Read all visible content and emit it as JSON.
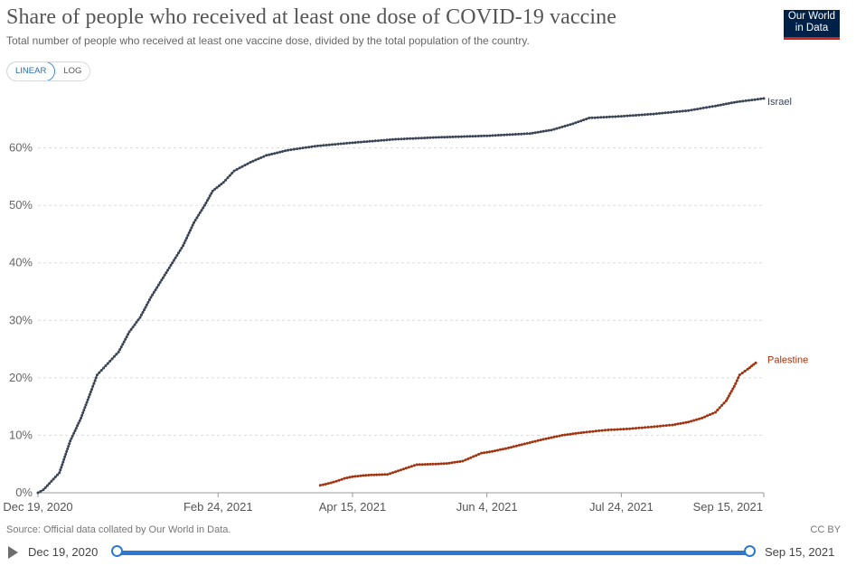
{
  "header": {
    "title": "Share of people who received at least one dose of COVID-19 vaccine",
    "subtitle": "Total number of people who received at least one vaccine dose, divided by the total population of the country.",
    "logo_line1": "Our World",
    "logo_line2": "in Data"
  },
  "scale_toggle": {
    "linear": "LINEAR",
    "log": "LOG",
    "selected": "LINEAR"
  },
  "footer": {
    "source": "Source: Official data collated by Our World in Data.",
    "license": "CC BY"
  },
  "timeline": {
    "start": "Dec 19, 2020",
    "end": "Sep 15, 2021"
  },
  "colors": {
    "israel": "#3a4556",
    "palestine": "#a2330f",
    "brand": "#002147",
    "accent": "#2c79cf"
  },
  "chart_data": {
    "type": "line",
    "title": "Share of people who received at least one dose of COVID-19 vaccine",
    "x_type": "date",
    "xlim": [
      "2020-12-19",
      "2021-09-15"
    ],
    "ylim": [
      0,
      70
    ],
    "y_unit": "%",
    "grid": true,
    "x_ticks": [
      {
        "label": "Dec 19, 2020",
        "date": "2020-12-19"
      },
      {
        "label": "Feb 24, 2021",
        "date": "2021-02-24"
      },
      {
        "label": "Apr 15, 2021",
        "date": "2021-04-15"
      },
      {
        "label": "Jun 4, 2021",
        "date": "2021-06-04"
      },
      {
        "label": "Jul 24, 2021",
        "date": "2021-07-24"
      },
      {
        "label": "Sep 15, 2021",
        "date": "2021-09-15"
      }
    ],
    "y_ticks": [
      {
        "label": "0%",
        "value": 0
      },
      {
        "label": "10%",
        "value": 10
      },
      {
        "label": "20%",
        "value": 20
      },
      {
        "label": "30%",
        "value": 30
      },
      {
        "label": "40%",
        "value": 40
      },
      {
        "label": "50%",
        "value": 50
      },
      {
        "label": "60%",
        "value": 60
      }
    ],
    "series": [
      {
        "name": "Israel",
        "color": "#3a4556",
        "points": [
          [
            "2020-12-19",
            0.0
          ],
          [
            "2020-12-21",
            0.5
          ],
          [
            "2020-12-24",
            2.0
          ],
          [
            "2020-12-27",
            3.5
          ],
          [
            "2020-12-31",
            9.0
          ],
          [
            "2021-01-04",
            13.0
          ],
          [
            "2021-01-08",
            18.0
          ],
          [
            "2021-01-10",
            20.5
          ],
          [
            "2021-01-14",
            22.5
          ],
          [
            "2021-01-18",
            24.5
          ],
          [
            "2021-01-22",
            28.0
          ],
          [
            "2021-01-26",
            30.5
          ],
          [
            "2021-01-30",
            34.0
          ],
          [
            "2021-02-03",
            37.0
          ],
          [
            "2021-02-07",
            40.0
          ],
          [
            "2021-02-11",
            43.0
          ],
          [
            "2021-02-15",
            47.0
          ],
          [
            "2021-02-19",
            50.0
          ],
          [
            "2021-02-22",
            52.5
          ],
          [
            "2021-02-26",
            54.0
          ],
          [
            "2021-03-02",
            56.0
          ],
          [
            "2021-03-08",
            57.5
          ],
          [
            "2021-03-14",
            58.7
          ],
          [
            "2021-03-22",
            59.6
          ],
          [
            "2021-04-01",
            60.3
          ],
          [
            "2021-04-15",
            60.9
          ],
          [
            "2021-05-01",
            61.5
          ],
          [
            "2021-05-15",
            61.8
          ],
          [
            "2021-06-04",
            62.1
          ],
          [
            "2021-06-20",
            62.5
          ],
          [
            "2021-06-28",
            63.1
          ],
          [
            "2021-07-06",
            64.2
          ],
          [
            "2021-07-12",
            65.2
          ],
          [
            "2021-07-24",
            65.5
          ],
          [
            "2021-08-05",
            65.9
          ],
          [
            "2021-08-18",
            66.5
          ],
          [
            "2021-08-28",
            67.3
          ],
          [
            "2021-09-05",
            68.0
          ],
          [
            "2021-09-15",
            68.6
          ]
        ]
      },
      {
        "name": "Palestine",
        "color": "#a2330f",
        "points": [
          [
            "2021-04-03",
            1.3
          ],
          [
            "2021-04-06",
            1.6
          ],
          [
            "2021-04-09",
            2.0
          ],
          [
            "2021-04-12",
            2.5
          ],
          [
            "2021-04-15",
            2.8
          ],
          [
            "2021-04-19",
            3.0
          ],
          [
            "2021-04-22",
            3.1
          ],
          [
            "2021-04-28",
            3.2
          ],
          [
            "2021-05-09",
            4.9
          ],
          [
            "2021-05-16",
            5.0
          ],
          [
            "2021-05-20",
            5.1
          ],
          [
            "2021-05-26",
            5.5
          ],
          [
            "2021-05-30",
            6.3
          ],
          [
            "2021-06-02",
            6.9
          ],
          [
            "2021-06-06",
            7.2
          ],
          [
            "2021-06-12",
            7.8
          ],
          [
            "2021-06-18",
            8.5
          ],
          [
            "2021-06-25",
            9.3
          ],
          [
            "2021-07-02",
            10.0
          ],
          [
            "2021-07-10",
            10.5
          ],
          [
            "2021-07-18",
            10.9
          ],
          [
            "2021-07-26",
            11.1
          ],
          [
            "2021-08-03",
            11.4
          ],
          [
            "2021-08-12",
            11.8
          ],
          [
            "2021-08-18",
            12.3
          ],
          [
            "2021-08-23",
            13.0
          ],
          [
            "2021-08-28",
            14.0
          ],
          [
            "2021-09-01",
            16.0
          ],
          [
            "2021-09-04",
            18.5
          ],
          [
            "2021-09-06",
            20.5
          ],
          [
            "2021-09-09",
            21.5
          ],
          [
            "2021-09-12",
            22.6
          ]
        ]
      }
    ]
  }
}
